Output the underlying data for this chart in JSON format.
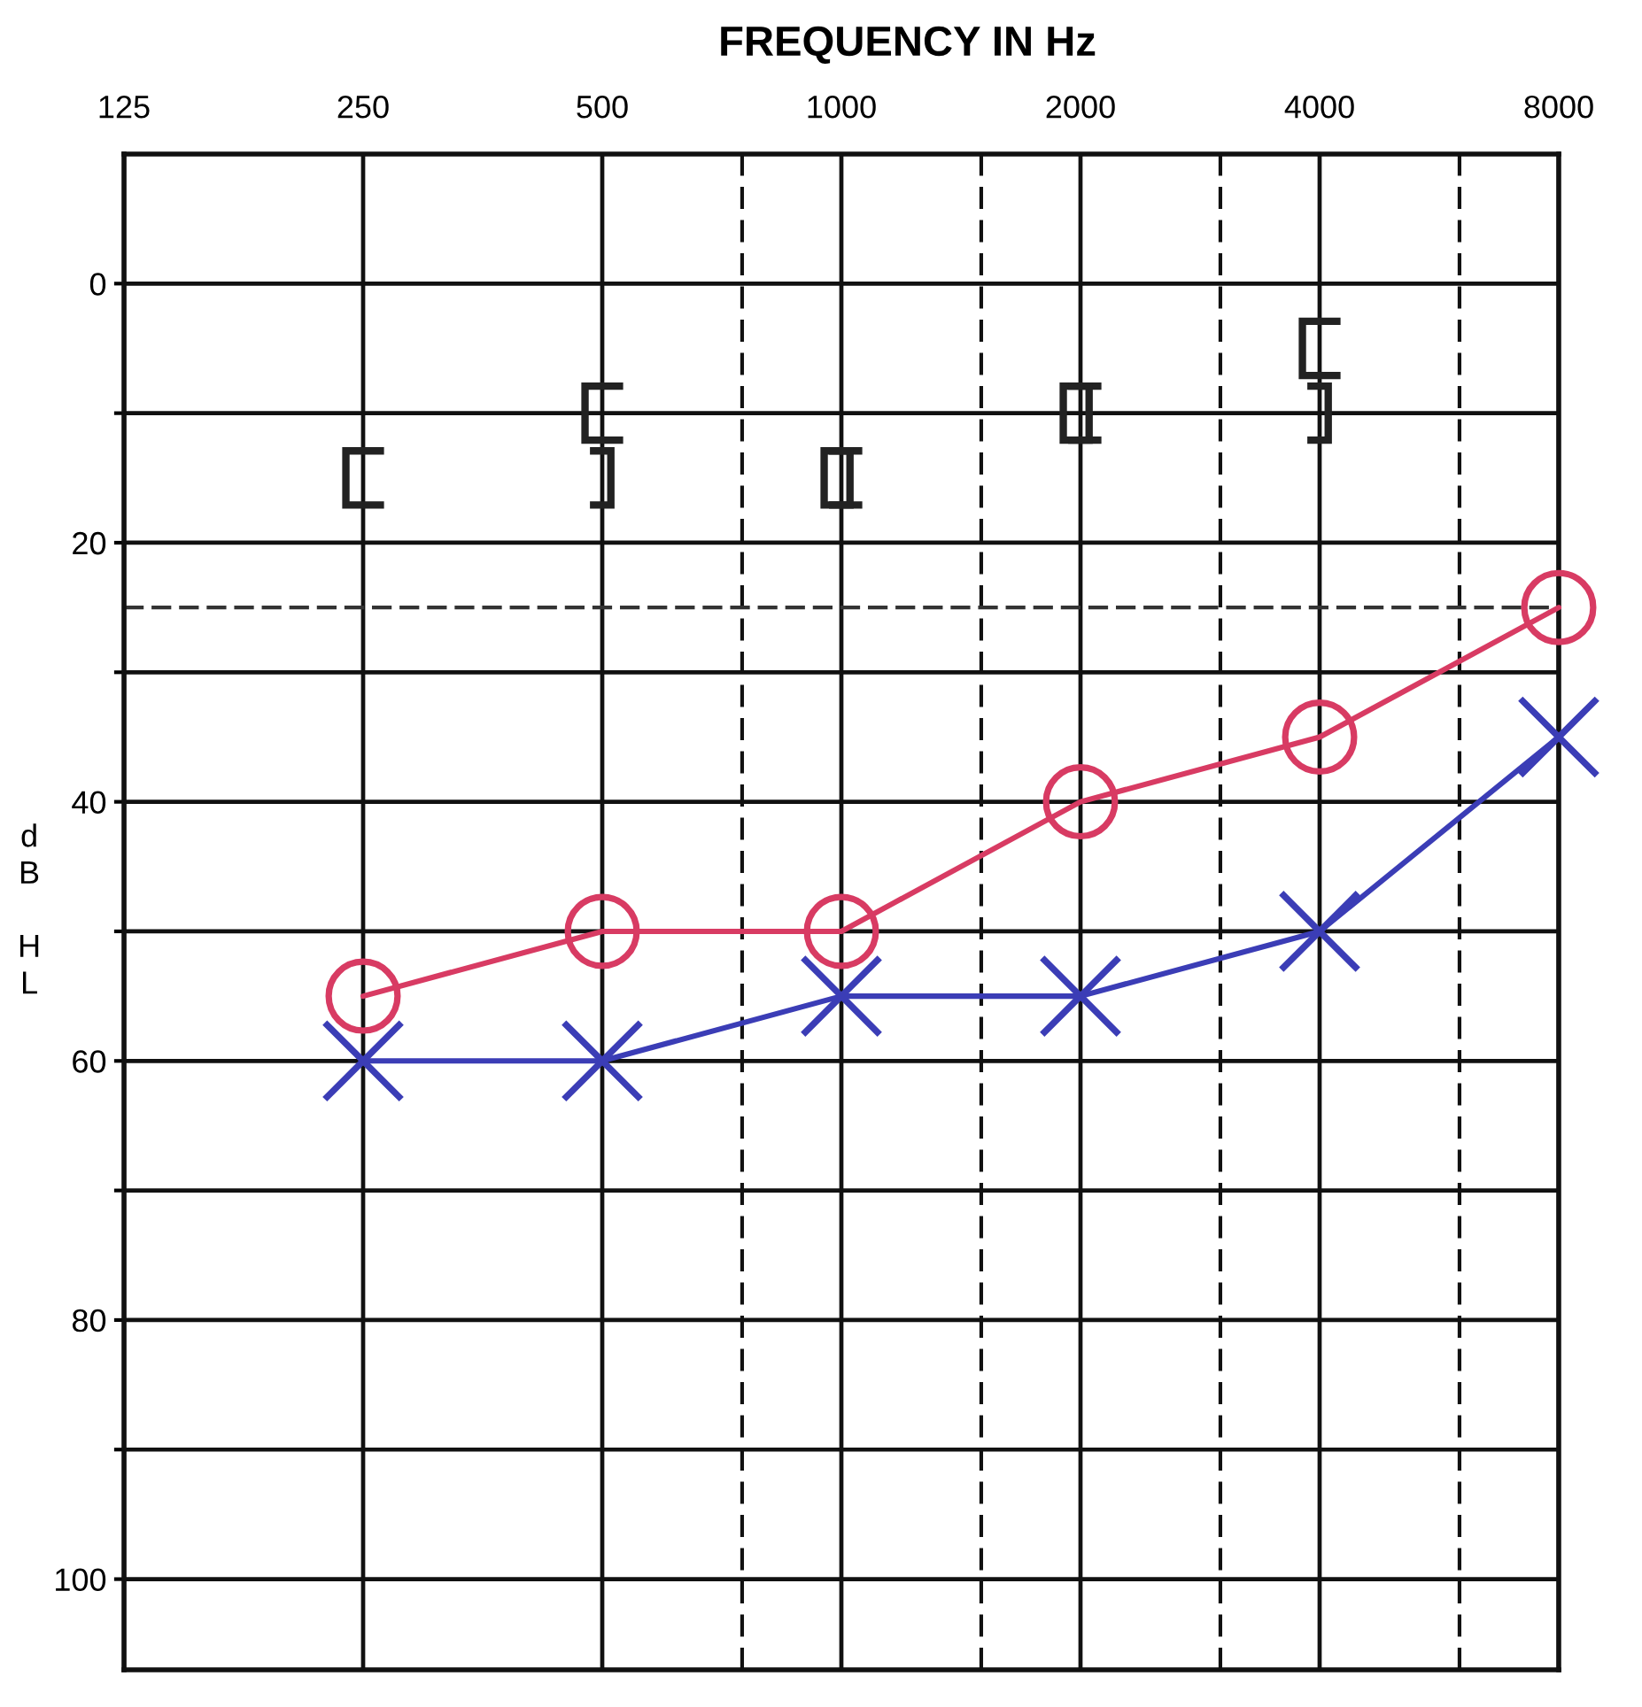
{
  "chart_data": {
    "type": "line",
    "xlabel": "FREQUENCY IN Hz",
    "ylabel": "dB HL",
    "log": "x",
    "x": [
      250,
      500,
      1000,
      2000,
      4000,
      8000
    ],
    "xlim": [
      125,
      8000
    ],
    "xticks": [
      125,
      250,
      500,
      {
        "value": 750,
        "label": null
      },
      1000,
      {
        "value": 1500,
        "label": null
      },
      2000,
      {
        "value": 3000,
        "label": null
      },
      4000,
      {
        "value": 6000,
        "label": null
      },
      8000
    ],
    "ylim": [
      107,
      -10
    ],
    "yticks": [
      0,
      {
        "value": 10,
        "label": null
      },
      20,
      {
        "value": 30,
        "label": null
      },
      40,
      {
        "value": 50,
        "label": null
      },
      60,
      {
        "value": 70,
        "label": null
      },
      80,
      {
        "value": 90,
        "label": null
      },
      100
    ],
    "grid": true,
    "series": [
      {
        "color": "#d83b63",
        "marker": "circle",
        "values": [
          55,
          50,
          50,
          40,
          35,
          25
        ]
      },
      {
        "color": "#3b3db6",
        "marker": "cross",
        "values": [
          60,
          60,
          55,
          55,
          50,
          35
        ]
      },
      {
        "type": "scatter",
        "color": "#222222",
        "values": [
          15,
          10,
          15,
          10,
          5,
          null
        ]
      },
      {
        "type": "scatter",
        "color": "#222222",
        "values": [
          null,
          15,
          15,
          10,
          10,
          null
        ]
      }
    ],
    "ref_lines": [
      {
        "axis": "y",
        "value": 25,
        "line_style": "dashed",
        "color": "#333333"
      }
    ]
  }
}
